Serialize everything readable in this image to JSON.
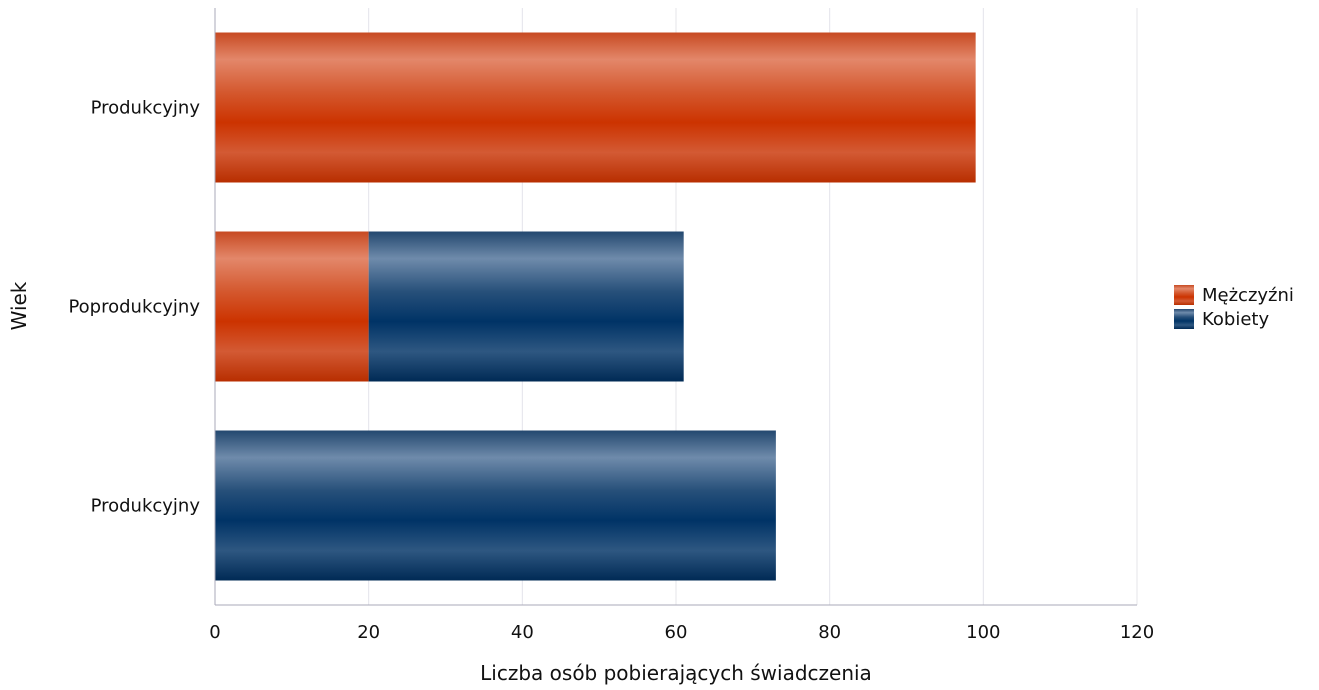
{
  "chart_data": {
    "type": "bar",
    "orientation": "horizontal",
    "stacked": true,
    "categories": [
      "Produkcyjny",
      "Poprodukcyjny",
      "Produkcyjny"
    ],
    "series": [
      {
        "name": "Mężczyźni",
        "values": [
          99,
          20,
          0
        ],
        "color": "#cc3300"
      },
      {
        "name": "Kobiety",
        "values": [
          0,
          41,
          73
        ],
        "color": "#003366"
      }
    ],
    "xlabel": "Liczba osób pobierających świadczenia",
    "ylabel": "Wiek",
    "xlim": [
      0,
      120
    ],
    "xticks": [
      0,
      20,
      40,
      60,
      80,
      100,
      120
    ],
    "grid": true,
    "legend_position": "right"
  }
}
